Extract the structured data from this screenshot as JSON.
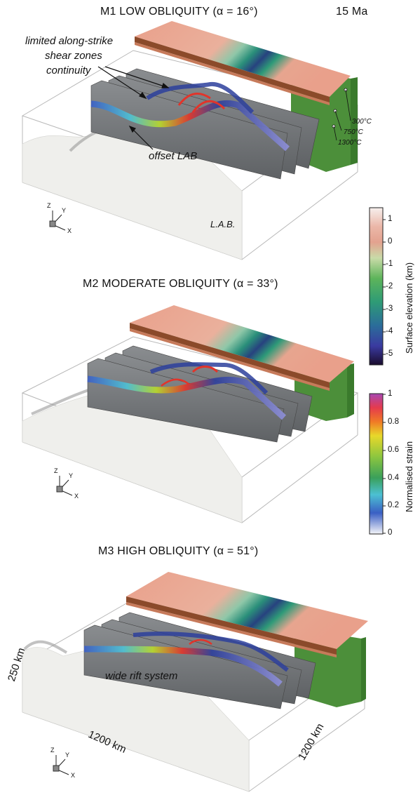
{
  "panels": [
    {
      "title": "M1 LOW OBLIQUITY (α = 16°)"
    },
    {
      "title": "M2 MODERATE OBLIQUITY (α = 33°)"
    },
    {
      "title": "M3 HIGH OBLIQUITY (α = 51°)"
    }
  ],
  "time_label": "15 Ma",
  "annotations": {
    "shear_line1": "limited along-strike",
    "shear_line2": "shear zones",
    "shear_line3": "continuity",
    "offset_lab": "offset LAB",
    "lab": "L.A.B.",
    "wide_rift": "wide rift system",
    "iso_300": "300°C",
    "iso_750": "750°C",
    "iso_1300": "1300°C"
  },
  "axes": {
    "z": "Z",
    "y": "Y",
    "x": "X"
  },
  "dimensions": {
    "depth": "250 km",
    "length_x": "1200 km",
    "length_y": "1200 km"
  },
  "colorbars": {
    "elevation": {
      "title": "Surface elevation (km)",
      "ticks": [
        "1",
        "0",
        "-1",
        "-2",
        "-3",
        "-4",
        "-5"
      ]
    },
    "strain": {
      "title": "Normalised strain",
      "ticks": [
        "1",
        "0.8",
        "0.6",
        "0.4",
        "0.2",
        "0"
      ]
    }
  },
  "colors": {
    "topo_high": "#e9a08b",
    "basin_mid": "#2e9b76",
    "basin_deep": "#1f3f8f",
    "crust_green": "#4c8f3a",
    "section_gray": "#6f7275",
    "mantle_white": "#eeeeea"
  }
}
